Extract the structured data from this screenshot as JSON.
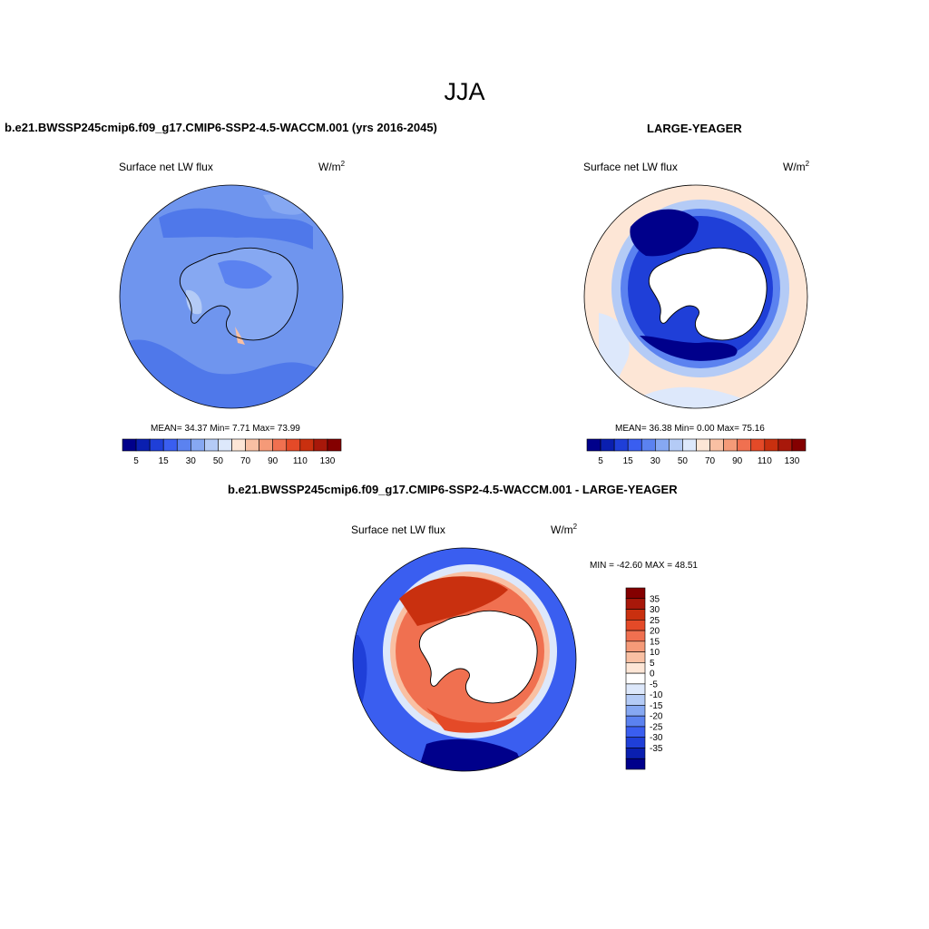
{
  "figure": {
    "title": "JJA"
  },
  "panels": [
    {
      "title": "b.e21.BWSSP245cmip6.f09_g17.CMIP6-SSP2-4.5-WACCM.001 (yrs 2016-2045)",
      "variable": "Surface net LW flux",
      "units": "W/m",
      "units_sup": "2",
      "stats": "MEAN=  34.37  Min=   7.71  Max=  73.99"
    },
    {
      "title": "LARGE-YEAGER",
      "variable": "Surface net LW flux",
      "units": "W/m",
      "units_sup": "2",
      "stats": "MEAN=  36.38  Min=   0.00  Max=  75.16"
    },
    {
      "title": "b.e21.BWSSP245cmip6.f09_g17.CMIP6-SSP2-4.5-WACCM.001 - LARGE-YEAGER",
      "variable": "Surface net LW flux",
      "units": "W/m",
      "units_sup": "2",
      "stats": "MIN = -42.60 MAX =  48.51"
    }
  ],
  "colorbar_abs": {
    "colors": [
      "#00008b",
      "#0a1fb0",
      "#1f3fd8",
      "#3a5ef0",
      "#5b82f0",
      "#86a8f2",
      "#b4cbf6",
      "#dde8fb",
      "#fde6d6",
      "#f9c0a3",
      "#f59a78",
      "#f07050",
      "#e44a28",
      "#c9300f",
      "#a8180a",
      "#840000"
    ],
    "labels": [
      "5",
      "15",
      "30",
      "50",
      "70",
      "90",
      "110",
      "130"
    ]
  },
  "colorbar_diff": {
    "colors": [
      "#00008b",
      "#0a1fb0",
      "#1f3fd8",
      "#3a5ef0",
      "#5b82f0",
      "#86a8f2",
      "#b4cbf6",
      "#dde8fb",
      "#ffffff",
      "#fde6d6",
      "#f9c0a3",
      "#f59a78",
      "#f07050",
      "#e44a28",
      "#c9300f",
      "#a8180a",
      "#840000"
    ],
    "labels": [
      "35",
      "30",
      "25",
      "20",
      "15",
      "10",
      "5",
      "0",
      "-5",
      "-10",
      "-15",
      "-20",
      "-25",
      "-30",
      "-35"
    ]
  }
}
